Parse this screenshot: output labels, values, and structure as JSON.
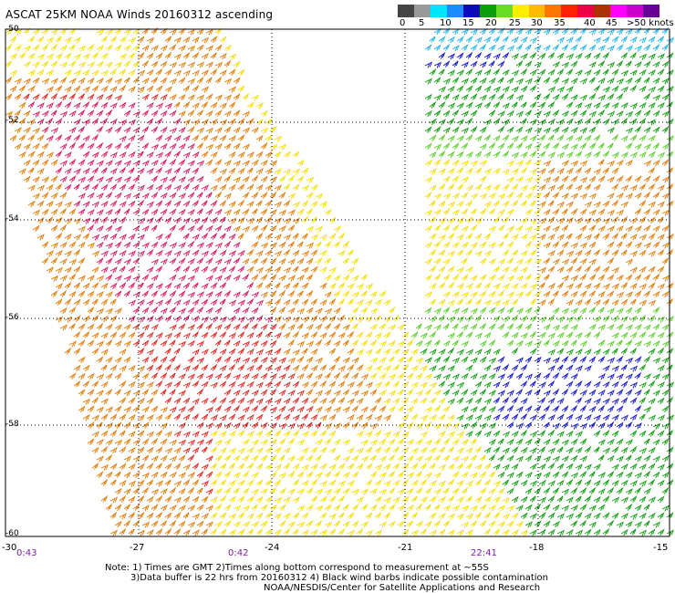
{
  "title": "ASCAT 25KM NOAA Winds 20160312 ascending",
  "legend": {
    "colors": [
      "#444444",
      "#999999",
      "#00e5ff",
      "#1a8cff",
      "#0b0bbd",
      "#0a9c0a",
      "#66dd22",
      "#ffee00",
      "#ffbb00",
      "#ff7700",
      "#ff2200",
      "#ee0044",
      "#aa3300",
      "#ff00ff",
      "#cc00cc",
      "#660099"
    ],
    "labels": [
      "0",
      "5",
      "10",
      "15",
      "20",
      "25",
      "30",
      "35",
      "40",
      "45",
      ">50 knots"
    ]
  },
  "map": {
    "lat_labels": [
      "-50",
      "-52",
      "-54",
      "-56",
      "-58",
      "-60"
    ],
    "lon_labels": [
      "-30",
      "-27",
      "-24",
      "-21",
      "-18",
      "-15"
    ],
    "times": [
      "0:43",
      "0:42",
      "22:41"
    ]
  },
  "notes": [
    "Note: 1) Times are GMT 2)Times along bottom correspond to measurement at ~55S",
    "3)Data buffer is 22 hrs from 20160312 4) Black wind barbs indicate possible contamination",
    "NOAA/NESDIS/Center for Satellite Applications and Research"
  ],
  "colors": {
    "grid": "#000000",
    "time": "#7b1fa2"
  }
}
